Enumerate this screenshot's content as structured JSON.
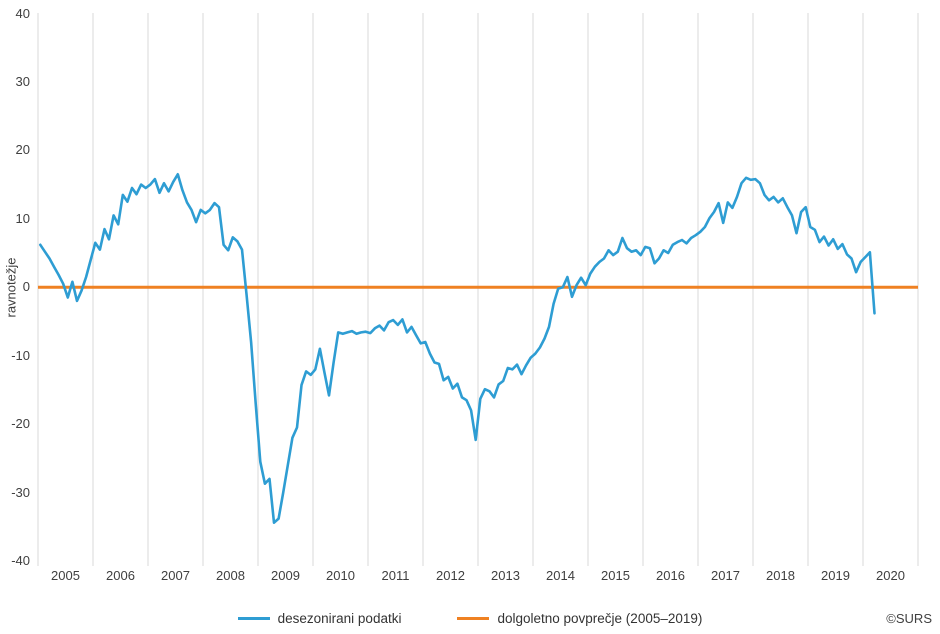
{
  "chart_data": {
    "type": "line",
    "title": "",
    "ylabel": "ravnotežje",
    "ylim": [
      -40,
      40
    ],
    "yticks": [
      40,
      30,
      20,
      10,
      0,
      -10,
      -20,
      -30,
      -40
    ],
    "x_years": [
      "2005",
      "2006",
      "2007",
      "2008",
      "2009",
      "2010",
      "2011",
      "2012",
      "2013",
      "2014",
      "2015",
      "2016",
      "2017",
      "2018",
      "2019",
      "2020"
    ],
    "x_axis_span_years": 16,
    "grid": "vertical-only",
    "legend_position": "bottom",
    "gridline_color": "#d9d9d9",
    "series": [
      {
        "name": "desezonirani podatki",
        "color": "#2e9dd3",
        "start_month": "2005-01",
        "frequency": "monthly",
        "values": [
          6.2,
          5.2,
          4.2,
          3.0,
          1.8,
          0.5,
          -1.5,
          0.8,
          -2.0,
          -0.5,
          1.5,
          4.0,
          6.5,
          5.5,
          8.5,
          7.0,
          10.5,
          9.2,
          13.5,
          12.5,
          14.5,
          13.6,
          15.0,
          14.5,
          15.0,
          15.8,
          13.8,
          15.2,
          14.0,
          15.4,
          16.5,
          14.2,
          12.4,
          11.3,
          9.5,
          11.3,
          10.8,
          11.3,
          12.3,
          11.7,
          6.2,
          5.4,
          7.3,
          6.7,
          5.5,
          -1.0,
          -8.0,
          -17.0,
          -25.5,
          -28.7,
          -28.0,
          -34.4,
          -33.8,
          -30.0,
          -26.0,
          -22.0,
          -20.5,
          -14.3,
          -12.3,
          -12.8,
          -12.0,
          -9.0,
          -12.5,
          -15.8,
          -11.0,
          -6.6,
          -6.8,
          -6.6,
          -6.4,
          -6.8,
          -6.6,
          -6.5,
          -6.7,
          -6.0,
          -5.6,
          -6.3,
          -5.1,
          -4.8,
          -5.5,
          -4.7,
          -6.6,
          -5.8,
          -7.0,
          -8.2,
          -8.0,
          -9.7,
          -11.0,
          -11.2,
          -13.6,
          -13.1,
          -14.8,
          -14.1,
          -16.1,
          -16.5,
          -18.0,
          -22.3,
          -16.3,
          -14.9,
          -15.2,
          -16.1,
          -14.2,
          -13.7,
          -11.8,
          -12.0,
          -11.3,
          -12.7,
          -11.4,
          -10.3,
          -9.7,
          -8.8,
          -7.5,
          -5.8,
          -2.4,
          -0.2,
          0.0,
          1.5,
          -1.4,
          0.3,
          1.4,
          0.3,
          2.0,
          3.0,
          3.7,
          4.2,
          5.4,
          4.7,
          5.2,
          7.2,
          5.7,
          5.2,
          5.4,
          4.7,
          5.9,
          5.7,
          3.5,
          4.2,
          5.4,
          5.0,
          6.2,
          6.6,
          6.9,
          6.4,
          7.2,
          7.6,
          8.1,
          8.8,
          10.1,
          11.0,
          12.3,
          9.4,
          12.4,
          11.6,
          13.2,
          15.2,
          16.0,
          15.7,
          15.8,
          15.2,
          13.5,
          12.7,
          13.2,
          12.4,
          13.0,
          11.7,
          10.5,
          7.9,
          11.0,
          11.7,
          8.8,
          8.4,
          6.6,
          7.4,
          6.1,
          7.0,
          5.6,
          6.3,
          4.8,
          4.2,
          2.2,
          3.7,
          4.4,
          5.1,
          -3.8
        ]
      },
      {
        "name": "dolgoletno povprečje (2005–2019)",
        "color": "#ef8122",
        "type": "constant",
        "value": 0
      }
    ]
  },
  "footer": {
    "source": "©SURS"
  }
}
